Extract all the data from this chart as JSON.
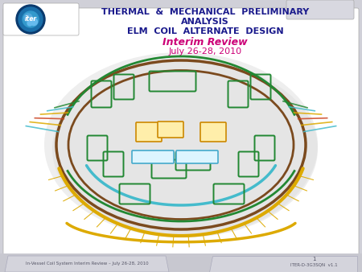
{
  "title_line1": "THERMAL  &  MECHANICAL  PRELIMINARY",
  "title_line2": "ANALYSIS",
  "title_line3": "ELM  COIL  ALTERNATE  DESIGN",
  "subtitle1": "Interim Review",
  "subtitle2": "July 26-28, 2010",
  "footer_left": "In-Vessel Coil System Interim Review – July 26-28, 2010",
  "footer_right": "ITER-D-3G3SQN  v1.1",
  "page_number": "1",
  "bg_color": "#d0d0d8",
  "slide_bg": "#ffffff",
  "title_color": "#1a1a8c",
  "subtitle1_color": "#cc0077",
  "subtitle2_color": "#cc0077",
  "footer_color": "#555566",
  "footer_bg": "#c8c8d0",
  "tab_bg": "#d8d8e0"
}
